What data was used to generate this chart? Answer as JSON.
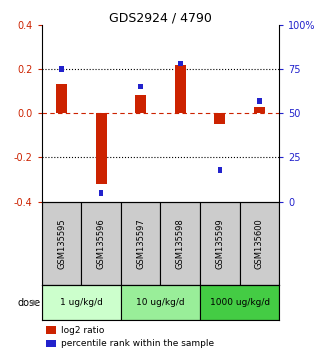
{
  "title": "GDS2924 / 4790",
  "samples": [
    "GSM135595",
    "GSM135596",
    "GSM135597",
    "GSM135598",
    "GSM135599",
    "GSM135600"
  ],
  "log2_ratio": [
    0.13,
    -0.32,
    0.08,
    0.22,
    -0.05,
    0.03
  ],
  "percentile_rank": [
    75,
    5,
    65,
    78,
    18,
    57
  ],
  "ylim_left": [
    -0.4,
    0.4
  ],
  "ylim_right": [
    0,
    100
  ],
  "yticks_left": [
    -0.4,
    -0.2,
    0.0,
    0.2,
    0.4
  ],
  "yticks_right": [
    0,
    25,
    50,
    75,
    100
  ],
  "ytick_labels_right": [
    "0",
    "25",
    "50",
    "75",
    "100%"
  ],
  "hlines_dotted": [
    0.2,
    -0.2
  ],
  "hline_dashed": 0.0,
  "dose_groups": [
    {
      "label": "1 ug/kg/d",
      "cols": [
        0,
        1
      ],
      "color": "#ccffcc"
    },
    {
      "label": "10 ug/kg/d",
      "cols": [
        2,
        3
      ],
      "color": "#99ee99"
    },
    {
      "label": "1000 ug/kg/d",
      "cols": [
        4,
        5
      ],
      "color": "#44cc44"
    }
  ],
  "red_color": "#cc2200",
  "blue_color": "#2222cc",
  "zero_line_color": "#cc2200",
  "sample_box_color": "#cccccc",
  "legend_red": "log2 ratio",
  "legend_blue": "percentile rank within the sample"
}
